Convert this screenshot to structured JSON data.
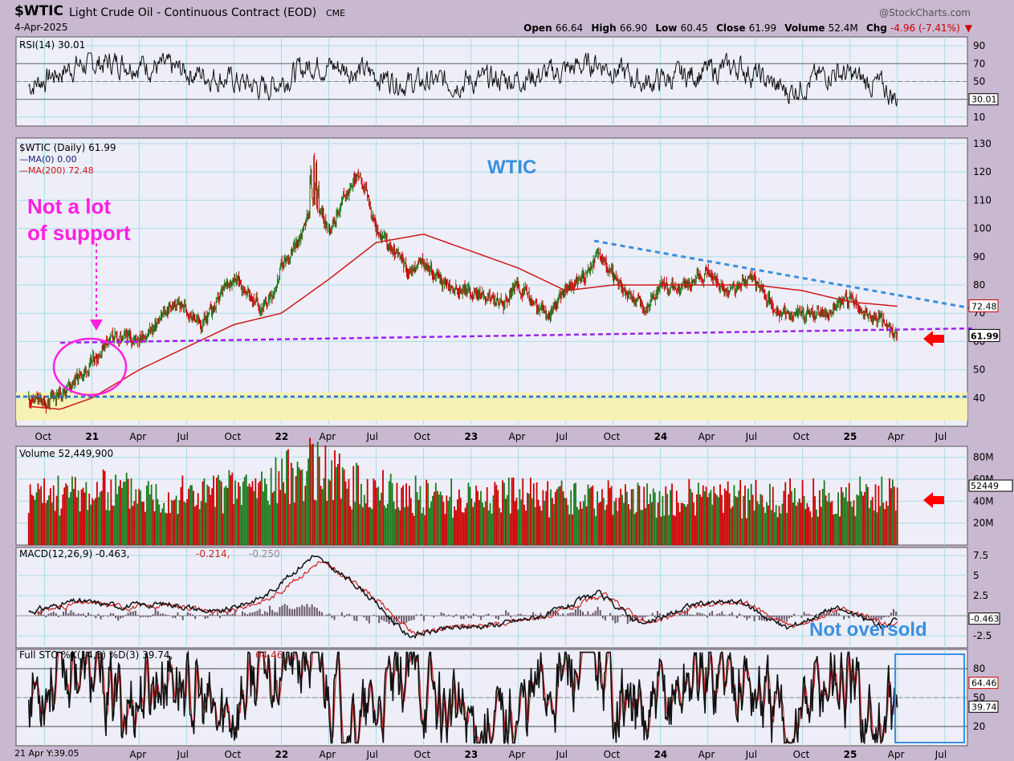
{
  "header": {
    "symbol": "$WTIC",
    "description": "Light Crude Oil - Continuous Contract (EOD)",
    "exchange": "CME",
    "date": "4-Apr-2025",
    "credit": "@StockCharts.com",
    "quote": {
      "open_label": "Open",
      "open": "66.64",
      "high_label": "High",
      "high": "66.90",
      "low_label": "Low",
      "low": "60.45",
      "close_label": "Close",
      "close": "61.99",
      "volume_label": "Volume",
      "volume": "52.4M",
      "chg_label": "Chg",
      "chg": "-4.96 (-7.41%)",
      "chg_arrow": "▼"
    },
    "hover_readout": "21 Apr Y:39.05"
  },
  "colors": {
    "panel_bg": "#eeeef8",
    "grid": "#a8dce6",
    "frame_bg": "#c8b8d0",
    "up": "#1a7a1a",
    "down": "#cc0000",
    "ma200": "#d01818",
    "trend_blue": "#3a8fdf",
    "support_purple": "#a020f0",
    "annot_magenta": "#ff20e0",
    "annot_blue": "#3a8fdf",
    "zone_yellow": "#f6f2b4"
  },
  "chart_data": [
    {
      "type": "line",
      "title": "RSI(14) 30.01",
      "ylim": [
        0,
        100
      ],
      "yticks": [
        10,
        30,
        50,
        70,
        90
      ],
      "reference_lines": [
        30,
        50,
        70
      ],
      "last_value_label": "30.01",
      "x": [
        "2020-09",
        "2020-12",
        "2021-03",
        "2021-06",
        "2021-09",
        "2021-12",
        "2022-03",
        "2022-06",
        "2022-09",
        "2022-12",
        "2023-03",
        "2023-06",
        "2023-09",
        "2023-12",
        "2024-03",
        "2024-06",
        "2024-09",
        "2024-12",
        "2025-03",
        "2025-04"
      ],
      "y": [
        45,
        68,
        72,
        64,
        55,
        42,
        70,
        62,
        48,
        50,
        52,
        58,
        72,
        48,
        58,
        67,
        38,
        62,
        44,
        30
      ]
    },
    {
      "type": "line",
      "title": "$WTIC (Daily) 61.99",
      "legend": [
        {
          "name": "$WTIC (Daily) 61.99",
          "color": "#000000"
        },
        {
          "name": "MA(0) 0.00",
          "color": "#1a1a7a"
        },
        {
          "name": "MA(200) 72.48",
          "color": "#d01818"
        }
      ],
      "ylim": [
        30,
        132
      ],
      "yticks": [
        40,
        50,
        60,
        70,
        80,
        90,
        100,
        110,
        120,
        130
      ],
      "last_value_labels": [
        "72.48",
        "61.99"
      ],
      "xtick_labels": [
        "Oct",
        "21",
        "Apr",
        "Jul",
        "Oct",
        "22",
        "Apr",
        "Jul",
        "Oct",
        "23",
        "Apr",
        "Jul",
        "Oct",
        "24",
        "Apr",
        "Jul",
        "Oct",
        "25",
        "Apr",
        "Jul"
      ],
      "series": [
        {
          "name": "$WTIC (Daily) 61.99",
          "x": [
            "2020-09",
            "2020-10",
            "2020-11",
            "2020-12",
            "2021-01",
            "2021-02",
            "2021-03",
            "2021-04",
            "2021-05",
            "2021-06",
            "2021-07",
            "2021-08",
            "2021-09",
            "2021-10",
            "2021-11",
            "2021-12",
            "2022-01",
            "2022-02",
            "2022-03",
            "2022-04",
            "2022-05",
            "2022-06",
            "2022-07",
            "2022-08",
            "2022-09",
            "2022-10",
            "2022-11",
            "2022-12",
            "2023-01",
            "2023-02",
            "2023-03",
            "2023-04",
            "2023-05",
            "2023-06",
            "2023-07",
            "2023-08",
            "2023-09",
            "2023-10",
            "2023-11",
            "2023-12",
            "2024-01",
            "2024-02",
            "2024-03",
            "2024-04",
            "2024-05",
            "2024-06",
            "2024-07",
            "2024-08",
            "2024-09",
            "2024-10",
            "2024-11",
            "2024-12",
            "2025-01",
            "2025-02",
            "2025-03",
            "2025-04"
          ],
          "y": [
            40,
            38,
            42,
            47,
            52,
            62,
            60,
            62,
            65,
            73,
            72,
            66,
            74,
            84,
            76,
            72,
            86,
            95,
            110,
            100,
            112,
            120,
            100,
            92,
            85,
            88,
            82,
            78,
            78,
            76,
            74,
            80,
            72,
            70,
            78,
            82,
            90,
            84,
            76,
            72,
            78,
            78,
            82,
            85,
            78,
            80,
            82,
            74,
            68,
            70,
            70,
            71,
            76,
            70,
            68,
            62
          ]
        },
        {
          "name": "MA(200) 72.48",
          "x": [
            "2020-09",
            "2020-11",
            "2021-01",
            "2021-04",
            "2021-07",
            "2021-10",
            "2022-01",
            "2022-04",
            "2022-07",
            "2022-10",
            "2023-01",
            "2023-04",
            "2023-07",
            "2023-10",
            "2024-01",
            "2024-04",
            "2024-07",
            "2024-10",
            "2025-01",
            "2025-04"
          ],
          "y": [
            37,
            36,
            40,
            50,
            58,
            66,
            70,
            82,
            95,
            98,
            92,
            86,
            78,
            80,
            80,
            80,
            80,
            78,
            74,
            72.48
          ]
        }
      ],
      "annotations": [
        "WTIC",
        "Not a lot of support"
      ]
    },
    {
      "type": "bar",
      "title": "Volume 52,449,900",
      "ylim": [
        0,
        90
      ],
      "yticks": [
        20,
        40,
        60,
        80
      ],
      "ytick_labels": [
        "20M",
        "40M",
        "60M",
        "80M"
      ],
      "last_value_label": "52449",
      "x": [
        "2020-09",
        "2020-12",
        "2021-03",
        "2021-06",
        "2021-09",
        "2021-12",
        "2022-03",
        "2022-06",
        "2022-09",
        "2022-12",
        "2023-03",
        "2023-06",
        "2023-09",
        "2023-12",
        "2024-03",
        "2024-06",
        "2024-09",
        "2024-12",
        "2025-03",
        "2025-04"
      ],
      "values": [
        45,
        50,
        52,
        48,
        50,
        58,
        75,
        55,
        48,
        45,
        48,
        44,
        45,
        42,
        45,
        44,
        46,
        45,
        48,
        52.4
      ]
    },
    {
      "type": "line",
      "title": "MACD(12,26,9) -0.463, -0.214, -0.250",
      "legend": [
        {
          "name": "MACD(12,26,9) -0.463",
          "color": "#000000"
        },
        {
          "name": "-0.214",
          "color": "#cc2222"
        },
        {
          "name": "-0.250",
          "color": "#8a8a8a"
        }
      ],
      "ylim": [
        -4,
        8.5
      ],
      "yticks": [
        -2.5,
        2.5,
        5.0,
        7.5
      ],
      "last_value_label": "-0.463",
      "annotations": [
        "Not oversold"
      ],
      "x": [
        "2020-09",
        "2020-12",
        "2021-03",
        "2021-06",
        "2021-09",
        "2021-12",
        "2022-03",
        "2022-06",
        "2022-09",
        "2022-12",
        "2023-03",
        "2023-06",
        "2023-09",
        "2023-12",
        "2024-03",
        "2024-06",
        "2024-09",
        "2024-12",
        "2025-03",
        "2025-04"
      ],
      "y": [
        0.5,
        1.8,
        1.2,
        1.5,
        0.3,
        2.5,
        7.5,
        3.5,
        -2.5,
        -1.5,
        -1.0,
        0.2,
        2.8,
        -1.2,
        1.4,
        1.8,
        -1.6,
        1.0,
        -1.2,
        -0.463
      ]
    },
    {
      "type": "line",
      "title": "Full STO %K(14,3) %D(3) 39.74, 64.46",
      "legend": [
        {
          "name": "Full STO %K(14,3) %D(3) 39.74",
          "color": "#000000"
        },
        {
          "name": "64.46",
          "color": "#cc2222"
        }
      ],
      "ylim": [
        0,
        100
      ],
      "yticks": [
        20,
        50,
        80
      ],
      "reference_lines": [
        20,
        50,
        80
      ],
      "last_value_labels": [
        "64.46",
        "39.74"
      ],
      "x": [
        "2020-09",
        "2020-12",
        "2021-03",
        "2021-06",
        "2021-09",
        "2021-12",
        "2022-03",
        "2022-06",
        "2022-09",
        "2022-12",
        "2023-03",
        "2023-06",
        "2023-09",
        "2023-12",
        "2024-03",
        "2024-06",
        "2024-09",
        "2024-12",
        "2025-03",
        "2025-04"
      ],
      "y": [
        60,
        85,
        40,
        80,
        20,
        85,
        90,
        15,
        75,
        30,
        20,
        70,
        85,
        20,
        75,
        80,
        15,
        80,
        10,
        39.74
      ],
      "xtick_labels": [
        "Apr",
        "Jul",
        "Oct",
        "22",
        "Apr",
        "Jul",
        "Oct",
        "23",
        "Apr",
        "Jul",
        "Oct",
        "24",
        "Apr",
        "Jul",
        "Oct",
        "25",
        "Apr",
        "Jul"
      ]
    }
  ]
}
